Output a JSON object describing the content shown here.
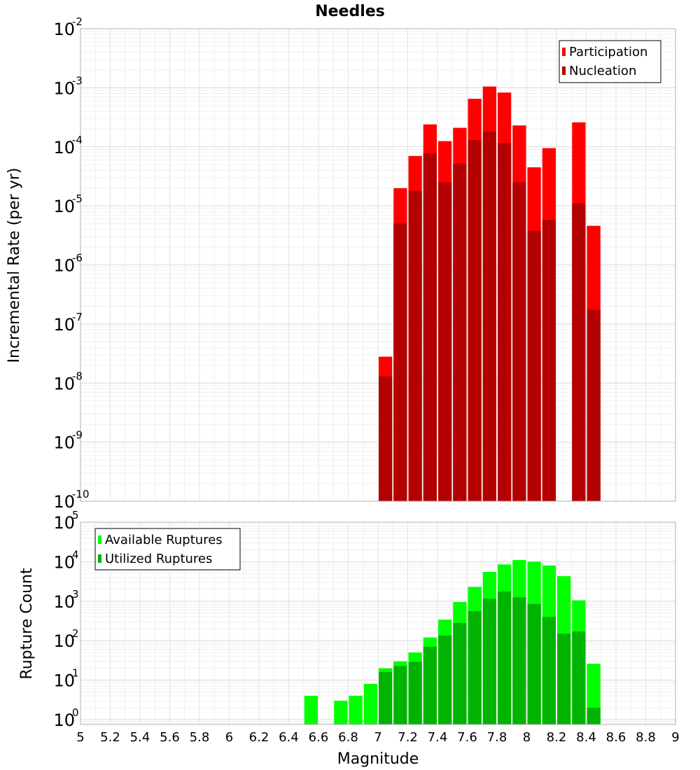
{
  "chart_data": [
    {
      "type": "bar",
      "title": "Needles",
      "xlabel": "",
      "ylabel": "Incremental Rate (per yr)",
      "xlim": [
        5,
        9
      ],
      "ylim": [
        1e-10,
        0.01
      ],
      "yscale": "log",
      "yticks": {
        "base": "10",
        "exponents": [
          "-10",
          "-9",
          "-8",
          "-7",
          "-6",
          "-5",
          "-4",
          "-3",
          "-2"
        ]
      },
      "grid": true,
      "legend_position": "top-right",
      "bin_width": 0.1,
      "series": [
        {
          "name": "Participation",
          "color": "#ff0000",
          "points": [
            [
              7.05,
              2.8e-08
            ],
            [
              7.15,
              2e-05
            ],
            [
              7.25,
              7e-05
            ],
            [
              7.35,
              0.00024
            ],
            [
              7.45,
              0.000125
            ],
            [
              7.55,
              0.00021
            ],
            [
              7.65,
              0.00065
            ],
            [
              7.75,
              0.00105
            ],
            [
              7.85,
              0.00083
            ],
            [
              7.95,
              0.00023
            ],
            [
              8.05,
              4.5e-05
            ],
            [
              8.15,
              9.5e-05
            ],
            [
              8.35,
              0.00026
            ],
            [
              8.45,
              4.6e-06
            ]
          ]
        },
        {
          "name": "Nucleation",
          "color": "#b30000",
          "points": [
            [
              7.05,
              1.3e-08
            ],
            [
              7.15,
              5e-06
            ],
            [
              7.25,
              1.8e-05
            ],
            [
              7.35,
              7.8e-05
            ],
            [
              7.45,
              2.5e-05
            ],
            [
              7.55,
              5.2e-05
            ],
            [
              7.65,
              0.00013
            ],
            [
              7.75,
              0.00018
            ],
            [
              7.85,
              0.000115
            ],
            [
              7.95,
              2.5e-05
            ],
            [
              8.05,
              3.8e-06
            ],
            [
              8.15,
              5.8e-06
            ],
            [
              8.35,
              1.1e-05
            ],
            [
              8.45,
              1.75e-07
            ]
          ]
        }
      ]
    },
    {
      "type": "bar",
      "title": "",
      "xlabel": "Magnitude",
      "ylabel": "Rupture Count",
      "xlim": [
        5,
        9
      ],
      "ylim": [
        0.75,
        100000.0
      ],
      "yscale": "log",
      "yticks": {
        "base": "10",
        "exponents": [
          "0",
          "1",
          "2",
          "3",
          "4",
          "5"
        ]
      },
      "xticks": [
        "5",
        "5.2",
        "5.4",
        "5.6",
        "5.8",
        "6",
        "6.2",
        "6.4",
        "6.6",
        "6.8",
        "7",
        "7.2",
        "7.4",
        "7.6",
        "7.8",
        "8",
        "8.2",
        "8.4",
        "8.6",
        "8.8",
        "9"
      ],
      "grid": true,
      "legend_position": "top-left",
      "bin_width": 0.1,
      "series": [
        {
          "name": "Available Ruptures",
          "color": "#00ff00",
          "points": [
            [
              6.55,
              4
            ],
            [
              6.75,
              3
            ],
            [
              6.85,
              4
            ],
            [
              6.95,
              8
            ],
            [
              7.05,
              20
            ],
            [
              7.15,
              30
            ],
            [
              7.25,
              50
            ],
            [
              7.35,
              120
            ],
            [
              7.45,
              340
            ],
            [
              7.55,
              950
            ],
            [
              7.65,
              2300
            ],
            [
              7.75,
              5500
            ],
            [
              7.85,
              8500
            ],
            [
              7.95,
              11000
            ],
            [
              8.05,
              10000
            ],
            [
              8.15,
              8000
            ],
            [
              8.25,
              4300
            ],
            [
              8.35,
              1050
            ],
            [
              8.45,
              26
            ]
          ]
        },
        {
          "name": "Utilized Ruptures",
          "color": "#00b300",
          "points": [
            [
              7.05,
              16
            ],
            [
              7.15,
              23
            ],
            [
              7.25,
              29
            ],
            [
              7.35,
              70
            ],
            [
              7.45,
              135
            ],
            [
              7.55,
              280
            ],
            [
              7.65,
              560
            ],
            [
              7.75,
              1150
            ],
            [
              7.85,
              1750
            ],
            [
              7.95,
              1250
            ],
            [
              8.05,
              850
            ],
            [
              8.15,
              400
            ],
            [
              8.25,
              150
            ],
            [
              8.35,
              170
            ],
            [
              8.45,
              2
            ]
          ]
        }
      ]
    }
  ]
}
